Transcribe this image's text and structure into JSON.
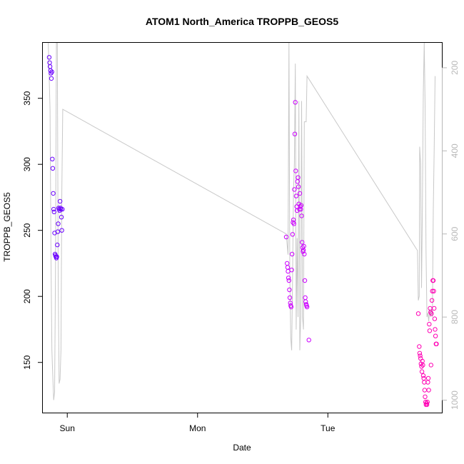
{
  "chart_data": {
    "type": "scatter",
    "title": "ATOM1 North_America TROPPB_GEOS5",
    "xlabel": "Date",
    "ylabel": "TROPPB_GEOS5",
    "x_ticks": [
      "Sun",
      "Mon",
      "Tue"
    ],
    "y_ticks": [
      150,
      200,
      250,
      300,
      350
    ],
    "y_right_ticks": [
      200,
      400,
      600,
      800,
      1000
    ],
    "y_right_reversed": true,
    "ylim": [
      112,
      392
    ],
    "y_right_lim": [
      140,
      1030
    ],
    "x_range_days": [
      "Sat 19:30",
      "Tue 21:00"
    ],
    "grid": false,
    "colors": {
      "points_early": "#6a00ff",
      "points_mid": "#cc00ff",
      "points_late": "#ff00b4",
      "line": "#c8c8c8"
    },
    "series": [
      {
        "points": [
          {
            "x": "Sat 20:40",
            "y": 381
          },
          {
            "x": "Sat 20:45",
            "y": 377
          },
          {
            "x": "Sat 20:50",
            "y": 374
          },
          {
            "x": "Sat 20:55",
            "y": 371
          },
          {
            "x": "Sat 21:00",
            "y": 369
          },
          {
            "x": "Sat 21:05",
            "y": 365
          },
          {
            "x": "Sat 21:10",
            "y": 370
          },
          {
            "x": "Sat 21:15",
            "y": 304
          },
          {
            "x": "Sat 21:20",
            "y": 297
          },
          {
            "x": "Sat 21:25",
            "y": 278
          },
          {
            "x": "Sat 21:30",
            "y": 266
          },
          {
            "x": "Sat 21:35",
            "y": 264
          },
          {
            "x": "Sat 21:40",
            "y": 248
          },
          {
            "x": "Sat 21:45",
            "y": 232
          },
          {
            "x": "Sat 21:50",
            "y": 231
          },
          {
            "x": "Sat 21:55",
            "y": 230
          },
          {
            "x": "Sat 22:00",
            "y": 229
          },
          {
            "x": "Sat 22:05",
            "y": 230
          },
          {
            "x": "Sat 22:10",
            "y": 239
          },
          {
            "x": "Sat 22:15",
            "y": 249
          },
          {
            "x": "Sat 22:20",
            "y": 255
          },
          {
            "x": "Sat 22:25",
            "y": 267
          },
          {
            "x": "Sat 22:30",
            "y": 266
          },
          {
            "x": "Sat 22:35",
            "y": 265
          },
          {
            "x": "Sat 22:40",
            "y": 272
          },
          {
            "x": "Sat 22:45",
            "y": 267
          },
          {
            "x": "Sat 22:50",
            "y": 266
          },
          {
            "x": "Sat 22:55",
            "y": 260
          },
          {
            "x": "Sat 23:00",
            "y": 250
          },
          {
            "x": "Sat 23:05",
            "y": 266
          },
          {
            "x": "Mon 16:20",
            "y": 245
          },
          {
            "x": "Mon 16:30",
            "y": 225
          },
          {
            "x": "Mon 16:35",
            "y": 222
          },
          {
            "x": "Mon 16:40",
            "y": 219
          },
          {
            "x": "Mon 16:45",
            "y": 214
          },
          {
            "x": "Mon 16:50",
            "y": 212
          },
          {
            "x": "Mon 16:55",
            "y": 205
          },
          {
            "x": "Mon 17:00",
            "y": 199
          },
          {
            "x": "Mon 17:05",
            "y": 195
          },
          {
            "x": "Mon 17:10",
            "y": 193
          },
          {
            "x": "Mon 17:15",
            "y": 192
          },
          {
            "x": "Mon 17:20",
            "y": 220
          },
          {
            "x": "Mon 17:25",
            "y": 232
          },
          {
            "x": "Mon 17:30",
            "y": 247
          },
          {
            "x": "Mon 17:35",
            "y": 256
          },
          {
            "x": "Mon 17:40",
            "y": 258
          },
          {
            "x": "Mon 17:45",
            "y": 255
          },
          {
            "x": "Mon 17:50",
            "y": 281
          },
          {
            "x": "Mon 17:55",
            "y": 323
          },
          {
            "x": "Mon 18:00",
            "y": 347
          },
          {
            "x": "Mon 18:05",
            "y": 295
          },
          {
            "x": "Mon 18:10",
            "y": 276
          },
          {
            "x": "Mon 18:15",
            "y": 268
          },
          {
            "x": "Mon 18:20",
            "y": 265
          },
          {
            "x": "Mon 18:25",
            "y": 287
          },
          {
            "x": "Mon 18:30",
            "y": 290
          },
          {
            "x": "Mon 18:35",
            "y": 283
          },
          {
            "x": "Mon 18:40",
            "y": 270
          },
          {
            "x": "Mon 18:45",
            "y": 266
          },
          {
            "x": "Mon 18:50",
            "y": 278
          },
          {
            "x": "Mon 18:55",
            "y": 268
          },
          {
            "x": "Mon 19:00",
            "y": 266
          },
          {
            "x": "Mon 19:05",
            "y": 269
          },
          {
            "x": "Mon 19:10",
            "y": 261
          },
          {
            "x": "Mon 19:15",
            "y": 241
          },
          {
            "x": "Mon 19:20",
            "y": 237
          },
          {
            "x": "Mon 19:25",
            "y": 234
          },
          {
            "x": "Mon 19:30",
            "y": 235
          },
          {
            "x": "Mon 19:35",
            "y": 238
          },
          {
            "x": "Mon 19:40",
            "y": 232
          },
          {
            "x": "Mon 19:45",
            "y": 212
          },
          {
            "x": "Mon 19:50",
            "y": 199
          },
          {
            "x": "Mon 19:55",
            "y": 196
          },
          {
            "x": "Mon 20:00",
            "y": 194
          },
          {
            "x": "Mon 20:05",
            "y": 193
          },
          {
            "x": "Mon 20:10",
            "y": 192
          },
          {
            "x": "Mon 20:30",
            "y": 167
          },
          {
            "x": "Tue 16:40",
            "y": 187
          },
          {
            "x": "Tue 16:50",
            "y": 162
          },
          {
            "x": "Tue 16:55",
            "y": 157
          },
          {
            "x": "Tue 17:00",
            "y": 155
          },
          {
            "x": "Tue 17:05",
            "y": 153
          },
          {
            "x": "Tue 17:10",
            "y": 149
          },
          {
            "x": "Tue 17:15",
            "y": 147
          },
          {
            "x": "Tue 17:20",
            "y": 143
          },
          {
            "x": "Tue 17:25",
            "y": 151
          },
          {
            "x": "Tue 17:30",
            "y": 148
          },
          {
            "x": "Tue 17:35",
            "y": 140
          },
          {
            "x": "Tue 17:40",
            "y": 138
          },
          {
            "x": "Tue 17:45",
            "y": 135
          },
          {
            "x": "Tue 17:50",
            "y": 129
          },
          {
            "x": "Tue 17:55",
            "y": 124
          },
          {
            "x": "Tue 18:00",
            "y": 120
          },
          {
            "x": "Tue 18:05",
            "y": 118
          },
          {
            "x": "Tue 18:10",
            "y": 119
          },
          {
            "x": "Tue 18:15",
            "y": 118
          },
          {
            "x": "Tue 18:20",
            "y": 120
          },
          {
            "x": "Tue 18:25",
            "y": 135
          },
          {
            "x": "Tue 18:30",
            "y": 138
          },
          {
            "x": "Tue 18:35",
            "y": 129
          },
          {
            "x": "Tue 18:40",
            "y": 179
          },
          {
            "x": "Tue 18:45",
            "y": 174
          },
          {
            "x": "Tue 18:50",
            "y": 191
          },
          {
            "x": "Tue 18:55",
            "y": 188
          },
          {
            "x": "Tue 19:00",
            "y": 148
          },
          {
            "x": "Tue 19:05",
            "y": 187
          },
          {
            "x": "Tue 19:10",
            "y": 197
          },
          {
            "x": "Tue 19:15",
            "y": 204
          },
          {
            "x": "Tue 19:20",
            "y": 212
          },
          {
            "x": "Tue 19:25",
            "y": 212
          },
          {
            "x": "Tue 19:30",
            "y": 204
          },
          {
            "x": "Tue 19:35",
            "y": 191
          },
          {
            "x": "Tue 19:40",
            "y": 183
          },
          {
            "x": "Tue 19:45",
            "y": 175
          },
          {
            "x": "Tue 19:50",
            "y": 170
          },
          {
            "x": "Tue 19:55",
            "y": 164
          },
          {
            "x": "Tue 20:00",
            "y": 164
          }
        ]
      },
      {
        "axis": "right",
        "points": [
          {
            "x": "Sat 20:30",
            "y": 140
          },
          {
            "x": "Sat 20:50",
            "y": 300
          },
          {
            "x": "Sat 21:00",
            "y": 650
          },
          {
            "x": "Sat 21:10",
            "y": 880
          },
          {
            "x": "Sat 21:20",
            "y": 940
          },
          {
            "x": "Sat 21:30",
            "y": 1000
          },
          {
            "x": "Sat 21:40",
            "y": 980
          },
          {
            "x": "Sat 21:50",
            "y": 700
          },
          {
            "x": "Sat 22:00",
            "y": 140
          },
          {
            "x": "Sat 22:10",
            "y": 140
          },
          {
            "x": "Sat 22:20",
            "y": 700
          },
          {
            "x": "Sat 22:30",
            "y": 960
          },
          {
            "x": "Sat 22:40",
            "y": 950
          },
          {
            "x": "Sat 22:50",
            "y": 880
          },
          {
            "x": "Sat 23:00",
            "y": 500
          },
          {
            "x": "Sat 23:10",
            "y": 300
          },
          {
            "x": "Mon 16:20",
            "y": 600
          },
          {
            "x": "Mon 16:30",
            "y": 625
          },
          {
            "x": "Mon 16:40",
            "y": 650
          },
          {
            "x": "Mon 16:50",
            "y": 140
          },
          {
            "x": "Mon 17:00",
            "y": 700
          },
          {
            "x": "Mon 17:10",
            "y": 850
          },
          {
            "x": "Mon 17:20",
            "y": 880
          },
          {
            "x": "Mon 17:30",
            "y": 700
          },
          {
            "x": "Mon 17:40",
            "y": 500
          },
          {
            "x": "Mon 17:50",
            "y": 430
          },
          {
            "x": "Mon 18:00",
            "y": 190
          },
          {
            "x": "Mon 18:10",
            "y": 830
          },
          {
            "x": "Mon 18:20",
            "y": 610
          },
          {
            "x": "Mon 18:30",
            "y": 800
          },
          {
            "x": "Mon 18:40",
            "y": 280
          },
          {
            "x": "Mon 18:50",
            "y": 880
          },
          {
            "x": "Mon 19:00",
            "y": 800
          },
          {
            "x": "Mon 19:10",
            "y": 280
          },
          {
            "x": "Mon 19:20",
            "y": 800
          },
          {
            "x": "Mon 19:30",
            "y": 830
          },
          {
            "x": "Mon 19:40",
            "y": 330
          },
          {
            "x": "Mon 19:50",
            "y": 330
          },
          {
            "x": "Mon 20:00",
            "y": 330
          },
          {
            "x": "Mon 20:10",
            "y": 220
          },
          {
            "x": "Tue 16:30",
            "y": 640
          },
          {
            "x": "Tue 16:40",
            "y": 760
          },
          {
            "x": "Tue 16:50",
            "y": 750
          },
          {
            "x": "Tue 16:55",
            "y": 390
          },
          {
            "x": "Tue 17:05",
            "y": 430
          },
          {
            "x": "Tue 17:15",
            "y": 730
          },
          {
            "x": "Tue 17:25",
            "y": 540
          },
          {
            "x": "Tue 17:35",
            "y": 260
          },
          {
            "x": "Tue 17:45",
            "y": 140
          },
          {
            "x": "Tue 17:55",
            "y": 290
          },
          {
            "x": "Tue 18:05",
            "y": 640
          },
          {
            "x": "Tue 18:15",
            "y": 800
          },
          {
            "x": "Tue 18:25",
            "y": 790
          },
          {
            "x": "Tue 18:35",
            "y": 810
          },
          {
            "x": "Tue 18:45",
            "y": 780
          },
          {
            "x": "Tue 18:55",
            "y": 800
          },
          {
            "x": "Tue 19:05",
            "y": 780
          },
          {
            "x": "Tue 19:15",
            "y": 800
          },
          {
            "x": "Tue 19:25",
            "y": 540
          },
          {
            "x": "Tue 19:35",
            "y": 400
          },
          {
            "x": "Tue 19:45",
            "y": 220
          }
        ]
      }
    ]
  }
}
